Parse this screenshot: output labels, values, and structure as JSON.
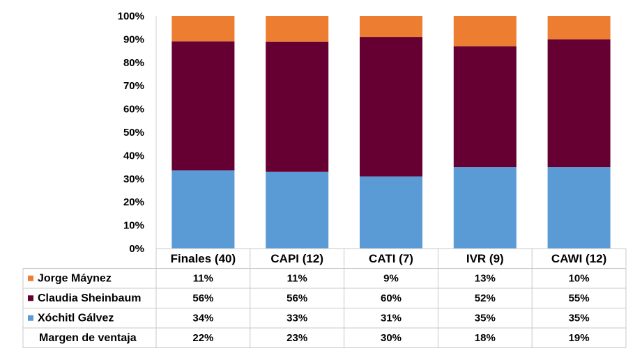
{
  "chart_data": {
    "type": "bar",
    "stacked": true,
    "title": "",
    "xlabel": "",
    "ylabel": "",
    "ylim": [
      0,
      100
    ],
    "y_ticks": [
      "0%",
      "10%",
      "20%",
      "30%",
      "40%",
      "50%",
      "60%",
      "70%",
      "80%",
      "90%",
      "100%"
    ],
    "grid": false,
    "legend": "data-table-left",
    "categories": [
      "Finales (40)",
      "CAPI (12)",
      "CATI (7)",
      "IVR (9)",
      "CAWI (12)"
    ],
    "series": [
      {
        "name": "Xóchitl Gálvez",
        "color": "#5B9BD5",
        "values": [
          34,
          33,
          31,
          35,
          35
        ],
        "labels": [
          "34%",
          "33%",
          "31%",
          "35%",
          "35%"
        ]
      },
      {
        "name": "Claudia Sheinbaum",
        "color": "#660033",
        "values": [
          56,
          56,
          60,
          52,
          55
        ],
        "labels": [
          "56%",
          "56%",
          "60%",
          "52%",
          "55%"
        ]
      },
      {
        "name": "Jorge Máynez",
        "color": "#ED7D31",
        "values": [
          11,
          11,
          9,
          13,
          10
        ],
        "labels": [
          "11%",
          "11%",
          "9%",
          "13%",
          "10%"
        ]
      }
    ],
    "extra_rows": [
      {
        "name": "Margen de ventaja",
        "labels": [
          "22%",
          "23%",
          "30%",
          "18%",
          "19%"
        ]
      }
    ]
  }
}
